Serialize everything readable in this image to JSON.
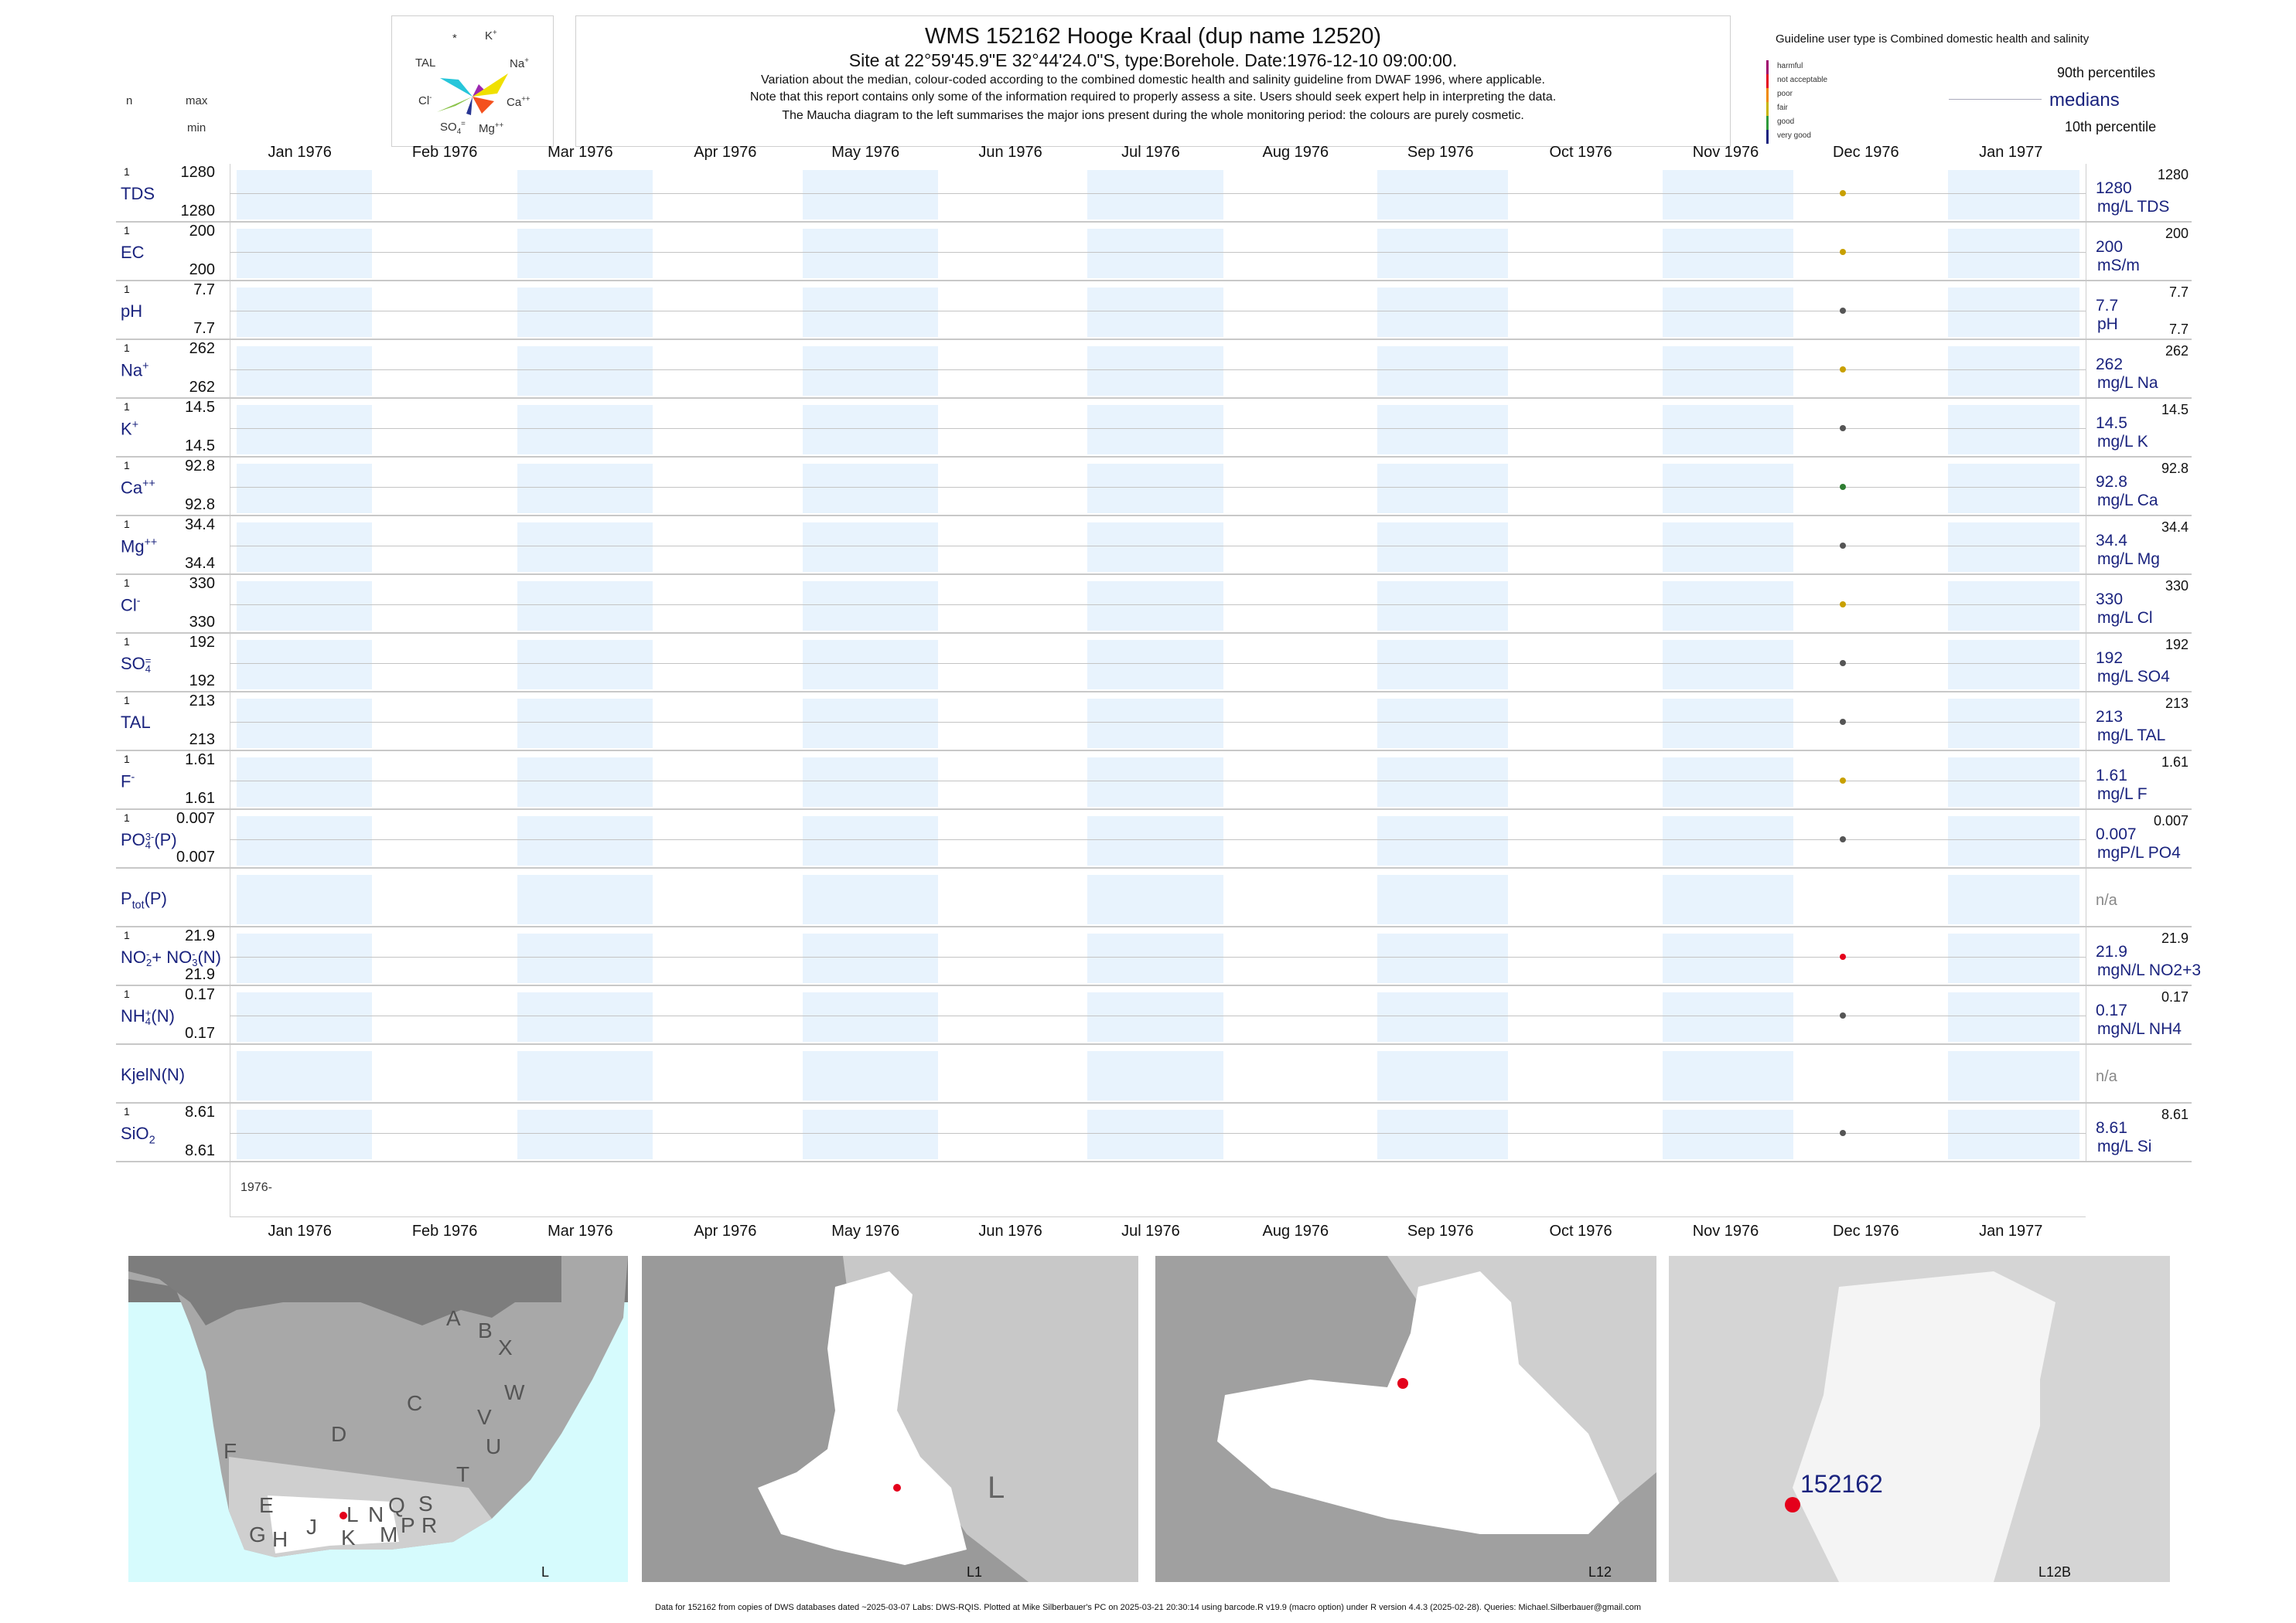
{
  "header": {
    "title": "WMS 152162  Hooge Kraal (dup name 12520)",
    "subtitle": "Site at 22°59'45.9\"E 32°44'24.0\"S, type:Borehole. Date:1976-12-10 09:00:00.",
    "note1": "Variation about the median,  colour-coded according to the combined domestic health and salinity guideline from DWAF 1996, where applicable.",
    "note2": "Note that this report contains only some of the information required to properly assess a site. Users should seek expert help in interpreting the data.",
    "note3": "The Maucha diagram to the left summarises the major ions present during the whole monitoring period: the colours are purely cosmetic."
  },
  "maucha": {
    "k": "K",
    "k_sup": "+",
    "na": "Na",
    "na_sup": "+",
    "ca": "Ca",
    "ca_sup": "++",
    "mg": "Mg",
    "mg_sup": "++",
    "so4": "SO",
    "so4_sub": "4",
    "so4_sup": "=",
    "cl": "Cl",
    "cl_sup": "-",
    "tal": "TAL",
    "star": "*"
  },
  "col_headers": {
    "n": "n",
    "max": "max",
    "min": "min"
  },
  "legend": {
    "guideline": "Guideline user type is Combined domestic health and salinity",
    "p90": "90th percentiles",
    "medians": "medians",
    "p10": "10th percentile",
    "categories": [
      {
        "label": "harmful",
        "color": "#a0006e"
      },
      {
        "label": "not acceptable",
        "color": "#e4001b"
      },
      {
        "label": "poor",
        "color": "#f08a00"
      },
      {
        "label": "fair",
        "color": "#c8b400"
      },
      {
        "label": "good",
        "color": "#2e9a3b"
      },
      {
        "label": "very good",
        "color": "#1a237e"
      }
    ]
  },
  "chart_data": {
    "type": "scatter",
    "x_axis_months": [
      "Jan 1976",
      "Feb 1976",
      "Mar 1976",
      "Apr 1976",
      "May 1976",
      "Jun 1976",
      "Jul 1976",
      "Aug 1976",
      "Sep 1976",
      "Oct 1976",
      "Nov 1976",
      "Dec 1976",
      "Jan 1977"
    ],
    "x_axis_bottom_label": "1976-",
    "sample_date": "1976-12-10",
    "series": [
      {
        "name": "TDS",
        "sup": "",
        "sub": "",
        "n": "1",
        "max": "1280",
        "min": "1280",
        "median": "1280",
        "p90": "1280",
        "p10": "",
        "unit": "mg/L TDS",
        "value": 1280,
        "color": "#c8a000"
      },
      {
        "name": "EC",
        "sup": "",
        "sub": "",
        "n": "1",
        "max": "200",
        "min": "200",
        "median": "200",
        "p90": "200",
        "p10": "",
        "unit": "mS/m",
        "value": 200,
        "color": "#c8a000"
      },
      {
        "name": "pH",
        "sup": "",
        "sub": "",
        "n": "1",
        "max": "7.7",
        "min": "7.7",
        "median": "7.7",
        "p90": "7.7",
        "p10": "7.7",
        "unit": "pH",
        "value": 7.7,
        "color": "#555555"
      },
      {
        "name": "Na",
        "sup": "+",
        "sub": "",
        "n": "1",
        "max": "262",
        "min": "262",
        "median": "262",
        "p90": "262",
        "p10": "",
        "unit": "mg/L Na",
        "value": 262,
        "color": "#c8a000"
      },
      {
        "name": "K",
        "sup": "+",
        "sub": "",
        "n": "1",
        "max": "14.5",
        "min": "14.5",
        "median": "14.5",
        "p90": "14.5",
        "p10": "",
        "unit": "mg/L K",
        "value": 14.5,
        "color": "#555555"
      },
      {
        "name": "Ca",
        "sup": "++",
        "sub": "",
        "n": "1",
        "max": "92.8",
        "min": "92.8",
        "median": "92.8",
        "p90": "92.8",
        "p10": "",
        "unit": "mg/L Ca",
        "value": 92.8,
        "color": "#2e7d32"
      },
      {
        "name": "Mg",
        "sup": "++",
        "sub": "",
        "n": "1",
        "max": "34.4",
        "min": "34.4",
        "median": "34.4",
        "p90": "34.4",
        "p10": "",
        "unit": "mg/L Mg",
        "value": 34.4,
        "color": "#555555"
      },
      {
        "name": "Cl",
        "sup": "-",
        "sub": "",
        "n": "1",
        "max": "330",
        "min": "330",
        "median": "330",
        "p90": "330",
        "p10": "",
        "unit": "mg/L Cl",
        "value": 330,
        "color": "#c8a000"
      },
      {
        "name": "SO",
        "sup": "=",
        "sub": "4",
        "n": "1",
        "max": "192",
        "min": "192",
        "median": "192",
        "p90": "192",
        "p10": "",
        "unit": "mg/L SO4",
        "value": 192,
        "color": "#555555"
      },
      {
        "name": "TAL",
        "sup": "",
        "sub": "",
        "n": "1",
        "max": "213",
        "min": "213",
        "median": "213",
        "p90": "213",
        "p10": "",
        "unit": "mg/L TAL",
        "value": 213,
        "color": "#555555"
      },
      {
        "name": "F",
        "sup": "-",
        "sub": "",
        "n": "1",
        "max": "1.61",
        "min": "1.61",
        "median": "1.61",
        "p90": "1.61",
        "p10": "",
        "unit": "mg/L F",
        "value": 1.61,
        "color": "#c8a000"
      },
      {
        "name": "PO",
        "sup": "3-",
        "sub": "4",
        "suffix": "(P)",
        "n": "1",
        "max": "0.007",
        "min": "0.007",
        "median": "0.007",
        "p90": "0.007",
        "p10": "",
        "unit": "mgP/L PO4",
        "value": 0.007,
        "color": "#555555"
      },
      {
        "name": "P",
        "sub": "tot",
        "sup": "",
        "suffix": "(P)",
        "n": "",
        "max": "",
        "min": "",
        "median": "n/a",
        "p90": "",
        "p10": "",
        "unit": "",
        "value": null,
        "color": ""
      },
      {
        "name": "NO",
        "sup": "-",
        "sub": "2",
        "suffix": "+ NO",
        "suffix_sup": "-",
        "suffix_sub": "3",
        "suffix2": "(N)",
        "n": "1",
        "max": "21.9",
        "min": "21.9",
        "median": "21.9",
        "p90": "21.9",
        "p10": "",
        "unit": "mgN/L NO2+3",
        "value": 21.9,
        "color": "#e4001b"
      },
      {
        "name": "NH",
        "sup": "+",
        "sub": "4",
        "suffix": "(N)",
        "n": "1",
        "max": "0.17",
        "min": "0.17",
        "median": "0.17",
        "p90": "0.17",
        "p10": "",
        "unit": "mgN/L NH4",
        "value": 0.17,
        "color": "#555555"
      },
      {
        "name": "KjelN(N)",
        "sup": "",
        "sub": "",
        "n": "",
        "max": "",
        "min": "",
        "median": "n/a",
        "p90": "",
        "p10": "",
        "unit": "",
        "value": null,
        "color": ""
      },
      {
        "name": "SiO",
        "sup": "",
        "sub": "2",
        "n": "1",
        "max": "8.61",
        "min": "8.61",
        "median": "8.61",
        "p90": "8.61",
        "p10": "",
        "unit": "mg/L Si",
        "value": 8.61,
        "color": "#555555"
      }
    ]
  },
  "maps": {
    "regional_letters": [
      "A",
      "B",
      "X",
      "W",
      "C",
      "V",
      "U",
      "D",
      "T",
      "F",
      "E",
      "S",
      "R",
      "Q",
      "N",
      "M",
      "P",
      "L",
      "K",
      "J",
      "G",
      "H"
    ],
    "labels": [
      "L",
      "L1",
      "L12",
      "L12B"
    ],
    "l1_big_letter": "L",
    "site_label": "152162"
  },
  "footer": "Data for 152162 from copies of DWS databases dated ~2025-03-07 Labs: DWS-RQIS. Plotted at Mike Silberbauer's PC on 2025-03-21 20:30:14 using barcode.R v19.9 (macro option) under R version 4.4.3 (2025-02-28). Queries: Michael.Silberbauer@gmail.com"
}
